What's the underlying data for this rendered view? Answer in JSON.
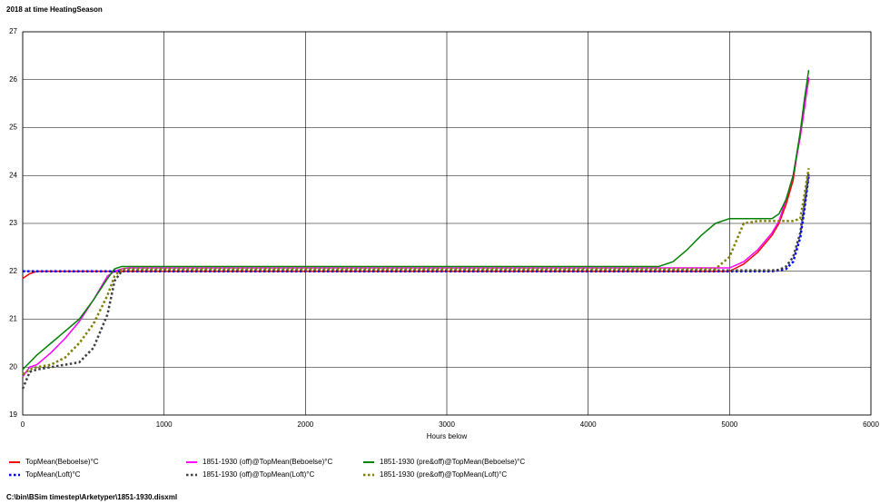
{
  "chart_data": {
    "type": "line",
    "title": "2018 at time HeatingSeason",
    "x_label": "Hours below",
    "caption": "C:\\bin\\BSim timestep\\Arketyper\\1851-1930.disxml",
    "x": [
      0,
      50,
      100,
      200,
      300,
      400,
      500,
      600,
      650,
      700,
      750,
      1000,
      2000,
      3000,
      4000,
      4500,
      4600,
      4700,
      4800,
      4900,
      5000,
      5100,
      5200,
      5300,
      5350,
      5400,
      5450,
      5500,
      5530,
      5560
    ],
    "series": [
      {
        "name": "TopMean(Beboelse)°C",
        "color": "#ff0000",
        "style": "solid",
        "values": [
          21.85,
          21.95,
          22.0,
          22.0,
          22.0,
          22.0,
          22.0,
          22.0,
          22.0,
          22.0,
          22.0,
          22.0,
          22.0,
          22.0,
          22.0,
          22.0,
          22.0,
          22.0,
          22.0,
          22.0,
          22.0,
          22.15,
          22.4,
          22.75,
          23.0,
          23.4,
          23.9,
          24.9,
          25.5,
          26.0
        ]
      },
      {
        "name": "1851-1930 (off)@TopMean(Beboelse)°C",
        "color": "#ff00ff",
        "style": "solid",
        "values": [
          19.8,
          20.0,
          20.05,
          20.3,
          20.6,
          20.95,
          21.4,
          21.9,
          22.0,
          22.05,
          22.07,
          22.07,
          22.07,
          22.07,
          22.07,
          22.07,
          22.07,
          22.07,
          22.07,
          22.07,
          22.07,
          22.2,
          22.45,
          22.8,
          23.05,
          23.5,
          24.0,
          24.8,
          25.4,
          26.05
        ]
      },
      {
        "name": "1851-1930 (pre&off)@TopMean(Beboelse)°C",
        "color": "#008000",
        "style": "solid",
        "values": [
          19.95,
          20.1,
          20.25,
          20.5,
          20.75,
          21.0,
          21.4,
          21.85,
          22.05,
          22.1,
          22.1,
          22.1,
          22.1,
          22.1,
          22.1,
          22.1,
          22.2,
          22.45,
          22.75,
          23.0,
          23.1,
          23.1,
          23.1,
          23.1,
          23.2,
          23.5,
          24.0,
          24.9,
          25.6,
          26.2
        ]
      },
      {
        "name": "TopMean(Loft)°C",
        "color": "#0000ff",
        "style": "dotted",
        "values": [
          22.0,
          22.0,
          22.0,
          22.0,
          22.0,
          22.0,
          22.0,
          22.0,
          22.0,
          22.0,
          22.0,
          22.0,
          22.0,
          22.0,
          22.0,
          22.0,
          22.0,
          22.0,
          22.0,
          22.0,
          22.0,
          22.0,
          22.0,
          22.0,
          22.02,
          22.05,
          22.2,
          22.7,
          23.3,
          24.0
        ]
      },
      {
        "name": "1851-1930 (off)@TopMean(Loft)°C",
        "color": "#404040",
        "style": "dotted",
        "values": [
          19.55,
          19.9,
          19.95,
          20.0,
          20.05,
          20.1,
          20.4,
          21.1,
          21.8,
          22.0,
          22.02,
          22.02,
          22.02,
          22.02,
          22.02,
          22.02,
          22.02,
          22.02,
          22.02,
          22.02,
          22.02,
          22.02,
          22.02,
          22.02,
          22.03,
          22.1,
          22.3,
          22.8,
          23.4,
          24.05
        ]
      },
      {
        "name": "1851-1930 (pre&off)@TopMean(Loft)°C",
        "color": "#808000",
        "style": "dotted",
        "values": [
          19.85,
          19.95,
          20.0,
          20.05,
          20.2,
          20.5,
          20.9,
          21.5,
          21.9,
          22.05,
          22.05,
          22.05,
          22.05,
          22.05,
          22.05,
          22.05,
          22.05,
          22.05,
          22.05,
          22.05,
          22.3,
          23.0,
          23.05,
          23.05,
          23.05,
          23.05,
          23.05,
          23.1,
          23.6,
          24.15
        ]
      }
    ],
    "xlim": [
      0,
      6000
    ],
    "xticks": [
      0,
      1000,
      2000,
      3000,
      4000,
      5000,
      6000
    ],
    "ylim": [
      19,
      27
    ],
    "yticks": [
      19,
      20,
      21,
      22,
      23,
      24,
      25,
      26,
      27
    ],
    "grid": true
  }
}
